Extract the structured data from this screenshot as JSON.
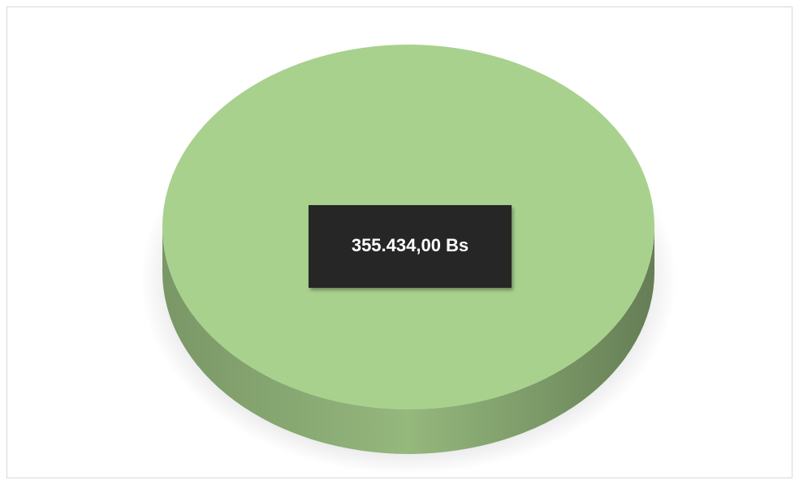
{
  "chart_data": {
    "type": "pie",
    "values": [
      355434
    ],
    "value_labels": [
      "355.434,00 Bs"
    ],
    "colors": [
      "#a9d18e"
    ]
  }
}
